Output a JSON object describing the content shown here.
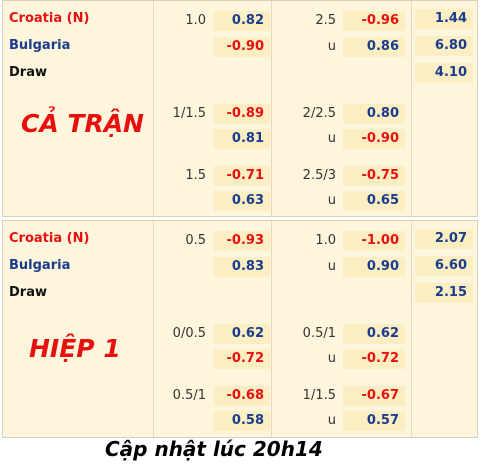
{
  "sections": [
    {
      "teams": [
        "Croatia (N)",
        "Bulgaria",
        "Draw"
      ],
      "label": "CẢ TRẬN",
      "lines": [
        {
          "handicap": "1.0",
          "home": "0.82",
          "away": "-0.90",
          "total": "2.5",
          "over": "-0.96",
          "under_label": "u",
          "under": "0.86"
        },
        {
          "handicap": "1/1.5",
          "home": "-0.89",
          "away": "0.81",
          "total": "2/2.5",
          "over": "0.80",
          "under_label": "u",
          "under": "-0.90"
        },
        {
          "handicap": "1.5",
          "home": "-0.71",
          "away": "0.63",
          "total": "2.5/3",
          "over": "-0.75",
          "under_label": "u",
          "under": "0.65"
        }
      ],
      "x12": [
        "1.44",
        "6.80",
        "4.10"
      ]
    },
    {
      "teams": [
        "Croatia (N)",
        "Bulgaria",
        "Draw"
      ],
      "label": "HIỆP 1",
      "lines": [
        {
          "handicap": "0.5",
          "home": "-0.93",
          "away": "0.83",
          "total": "1.0",
          "over": "-1.00",
          "under_label": "u",
          "under": "0.90"
        },
        {
          "handicap": "0/0.5",
          "home": "0.62",
          "away": "-0.72",
          "total": "0.5/1",
          "over": "0.62",
          "under_label": "u",
          "under": "-0.72"
        },
        {
          "handicap": "0.5/1",
          "home": "-0.68",
          "away": "0.58",
          "total": "1/1.5",
          "over": "-0.67",
          "under_label": "u",
          "under": "0.57"
        }
      ],
      "x12": [
        "2.07",
        "6.60",
        "2.15"
      ]
    }
  ],
  "footer": "Cập nhật lúc 20h14"
}
